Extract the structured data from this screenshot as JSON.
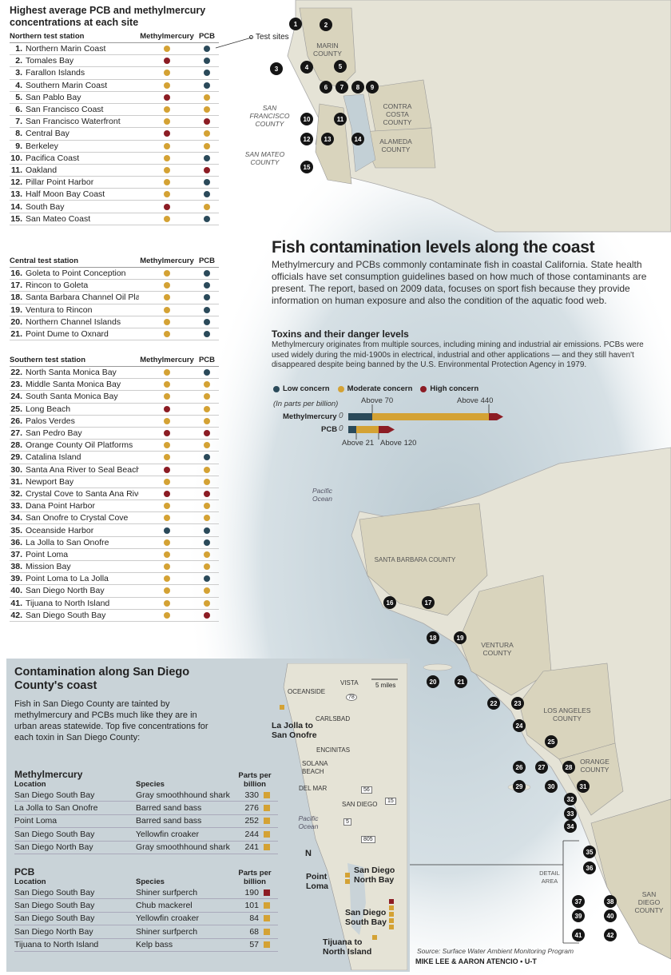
{
  "titles": {
    "left_title": "Highest average PCB and methylmercury concentrations at each site",
    "headline": "Fish contamination levels along the coast",
    "intro": "Methylmercury and PCBs commonly contaminate fish in coastal California. State health officials have set consumption guidelines based on how much of those contaminants are present. The report, based on 2009 data, focuses on sport fish because they provide information on human exposure and also the condition of the aquatic food web.",
    "sub_heading": "Toxins and their danger levels",
    "sub_text": "Methylmercury originates from multiple sources, including mining and industrial air emissions. PCBs were used widely during the mid-1900s in electrical, industrial and other applications — and they still haven't disappeared despite being banned by the U.S. Environmental Protection Agency in 1979.",
    "test_sites": "Test sites",
    "source": "Source: Surface Water Ambient Monitoring Program",
    "credit": "MIKE LEE & AARON ATENCIO • U-T"
  },
  "colors": {
    "low": "#2b4a5a",
    "moderate": "#d4a234",
    "high": "#8c1c24"
  },
  "legend": {
    "low": "Low concern",
    "moderate": "Moderate concern",
    "high": "High concern",
    "units": "(In parts per billion)"
  },
  "thresholds": {
    "methyl_label": "Methylmercury",
    "pcb_label": "PCB",
    "zero": "0",
    "methyl_low": "Above 70",
    "methyl_high": "Above 440",
    "pcb_low": "Above 21",
    "pcb_high": "Above 120"
  },
  "col_headers": {
    "methyl": "Methylmercury",
    "pcb": "PCB"
  },
  "groups": [
    {
      "label": "Northern test station",
      "rows": [
        {
          "n": "1.",
          "name": "Northern Marin Coast",
          "m": "moderate",
          "p": "low"
        },
        {
          "n": "2.",
          "name": "Tomales Bay",
          "m": "high",
          "p": "low"
        },
        {
          "n": "3.",
          "name": "Farallon Islands",
          "m": "moderate",
          "p": "low"
        },
        {
          "n": "4.",
          "name": "Southern Marin Coast",
          "m": "moderate",
          "p": "low"
        },
        {
          "n": "5.",
          "name": "San Pablo Bay",
          "m": "high",
          "p": "moderate"
        },
        {
          "n": "6.",
          "name": "San Francisco Coast",
          "m": "moderate",
          "p": "moderate"
        },
        {
          "n": "7.",
          "name": "San Francisco Waterfront",
          "m": "moderate",
          "p": "high"
        },
        {
          "n": "8.",
          "name": "Central Bay",
          "m": "high",
          "p": "moderate"
        },
        {
          "n": "9.",
          "name": "Berkeley",
          "m": "moderate",
          "p": "moderate"
        },
        {
          "n": "10.",
          "name": "Pacifica Coast",
          "m": "moderate",
          "p": "low"
        },
        {
          "n": "11.",
          "name": "Oakland",
          "m": "moderate",
          "p": "high"
        },
        {
          "n": "12.",
          "name": "Pillar Point Harbor",
          "m": "moderate",
          "p": "low"
        },
        {
          "n": "13.",
          "name": "Half Moon Bay Coast",
          "m": "moderate",
          "p": "low"
        },
        {
          "n": "14.",
          "name": "South Bay",
          "m": "high",
          "p": "moderate"
        },
        {
          "n": "15.",
          "name": "San Mateo Coast",
          "m": "moderate",
          "p": "low"
        }
      ]
    },
    {
      "label": "Central test station",
      "rows": [
        {
          "n": "16.",
          "name": "Goleta to Point Conception",
          "m": "moderate",
          "p": "low"
        },
        {
          "n": "17.",
          "name": "Rincon to Goleta",
          "m": "moderate",
          "p": "low"
        },
        {
          "n": "18.",
          "name": "Santa Barbara Channel Oil Platform",
          "m": "moderate",
          "p": "low"
        },
        {
          "n": "19.",
          "name": "Ventura to Rincon",
          "m": "moderate",
          "p": "low"
        },
        {
          "n": "20.",
          "name": "Northern Channel Islands",
          "m": "moderate",
          "p": "low"
        },
        {
          "n": "21.",
          "name": "Point Dume to Oxnard",
          "m": "moderate",
          "p": "low"
        }
      ]
    },
    {
      "label": "Southern test station",
      "rows": [
        {
          "n": "22.",
          "name": "North Santa Monica Bay",
          "m": "moderate",
          "p": "low"
        },
        {
          "n": "23.",
          "name": "Middle Santa Monica Bay",
          "m": "moderate",
          "p": "moderate"
        },
        {
          "n": "24.",
          "name": "South Santa Monica Bay",
          "m": "moderate",
          "p": "moderate"
        },
        {
          "n": "25.",
          "name": "Long Beach",
          "m": "high",
          "p": "moderate"
        },
        {
          "n": "26.",
          "name": "Palos Verdes",
          "m": "moderate",
          "p": "moderate"
        },
        {
          "n": "27.",
          "name": "San Pedro Bay",
          "m": "high",
          "p": "high"
        },
        {
          "n": "28.",
          "name": "Orange County Oil Platforms",
          "m": "moderate",
          "p": "moderate"
        },
        {
          "n": "29.",
          "name": "Catalina Island",
          "m": "moderate",
          "p": "low"
        },
        {
          "n": "30.",
          "name": "Santa Ana River to Seal Beach",
          "m": "high",
          "p": "moderate"
        },
        {
          "n": "31.",
          "name": "Newport Bay",
          "m": "moderate",
          "p": "moderate"
        },
        {
          "n": "32.",
          "name": "Crystal Cove to Santa Ana River",
          "m": "high",
          "p": "high"
        },
        {
          "n": "33.",
          "name": "Dana Point Harbor",
          "m": "moderate",
          "p": "moderate"
        },
        {
          "n": "34.",
          "name": "San Onofre to Crystal Cove",
          "m": "moderate",
          "p": "moderate"
        },
        {
          "n": "35.",
          "name": "Oceanside Harbor",
          "m": "low",
          "p": "low"
        },
        {
          "n": "36.",
          "name": "La Jolla to San Onofre",
          "m": "moderate",
          "p": "low"
        },
        {
          "n": "37.",
          "name": "Point Loma",
          "m": "moderate",
          "p": "moderate"
        },
        {
          "n": "38.",
          "name": "Mission Bay",
          "m": "moderate",
          "p": "moderate"
        },
        {
          "n": "39.",
          "name": "Point Loma to La Jolla",
          "m": "moderate",
          "p": "low"
        },
        {
          "n": "40.",
          "name": "San Diego North Bay",
          "m": "moderate",
          "p": "moderate"
        },
        {
          "n": "41.",
          "name": "Tijuana to North Island",
          "m": "moderate",
          "p": "moderate"
        },
        {
          "n": "42.",
          "name": "San Diego South Bay",
          "m": "moderate",
          "p": "high"
        }
      ]
    }
  ],
  "map_labels": {
    "marin": "MARIN COUNTY",
    "sf": "SAN FRANCISCO COUNTY",
    "sm": "SAN MATEO COUNTY",
    "cc": "CONTRA COSTA COUNTY",
    "al": "ALAMEDA COUNTY",
    "pacific": "Pacific Ocean",
    "sb": "SANTA BARBARA COUNTY",
    "ven": "VENTURA COUNTY",
    "la": "LOS ANGELES COUNTY",
    "or": "ORANGE COUNTY",
    "sd": "SAN DIEGO COUNTY",
    "detail": "DETAIL AREA"
  },
  "sd_panel": {
    "title": "Contamination along San Diego County's coast",
    "intro": "Fish in San Diego County are tainted by methylmercury and PCBs much like they are in urban areas statewide. Top five concentrations for each toxin in San Diego County:",
    "col_location": "Location",
    "col_species": "Species",
    "col_ppb": "Parts per billion",
    "methyl": {
      "caption": "Methylmercury",
      "rows": [
        {
          "loc": "San Diego South Bay",
          "sp": "Gray smoothhound shark",
          "v": "330",
          "c": "moderate"
        },
        {
          "loc": "La Jolla to San Onofre",
          "sp": "Barred sand bass",
          "v": "276",
          "c": "moderate"
        },
        {
          "loc": "Point Loma",
          "sp": "Barred sand bass",
          "v": "252",
          "c": "moderate"
        },
        {
          "loc": "San Diego South Bay",
          "sp": "Yellowfin croaker",
          "v": "244",
          "c": "moderate"
        },
        {
          "loc": "San Diego North Bay",
          "sp": "Gray smoothhound shark",
          "v": "241",
          "c": "moderate"
        }
      ]
    },
    "pcb": {
      "caption": "PCB",
      "rows": [
        {
          "loc": "San Diego South Bay",
          "sp": "Shiner surfperch",
          "v": "190",
          "c": "high"
        },
        {
          "loc": "San Diego South Bay",
          "sp": "Chub mackerel",
          "v": "101",
          "c": "moderate"
        },
        {
          "loc": "San Diego South Bay",
          "sp": "Yellowfin croaker",
          "v": "84",
          "c": "moderate"
        },
        {
          "loc": "San Diego North Bay",
          "sp": "Shiner surfperch",
          "v": "68",
          "c": "moderate"
        },
        {
          "loc": "Tijuana to North Island",
          "sp": "Kelp bass",
          "v": "57",
          "c": "moderate"
        }
      ]
    },
    "map": {
      "oceanside": "OCEANSIDE",
      "vista": "VISTA",
      "carlsbad": "CARLSBAD",
      "encinitas": "ENCINITAS",
      "solana": "SOLANA BEACH",
      "delmar": "DEL MAR",
      "sandiego": "SAN DIEGO",
      "pacific": "Pacific Ocean",
      "scale": "5 miles",
      "north": "N",
      "c_lajolla": "La Jolla to San Onofre",
      "c_ptloma": "Point Loma",
      "c_northbay": "San Diego North Bay",
      "c_southbay": "San Diego South Bay",
      "c_tijuana": "Tijuana to North Island",
      "r78": "78",
      "r56": "56",
      "r15": "15",
      "r5": "5",
      "r805": "805"
    }
  }
}
